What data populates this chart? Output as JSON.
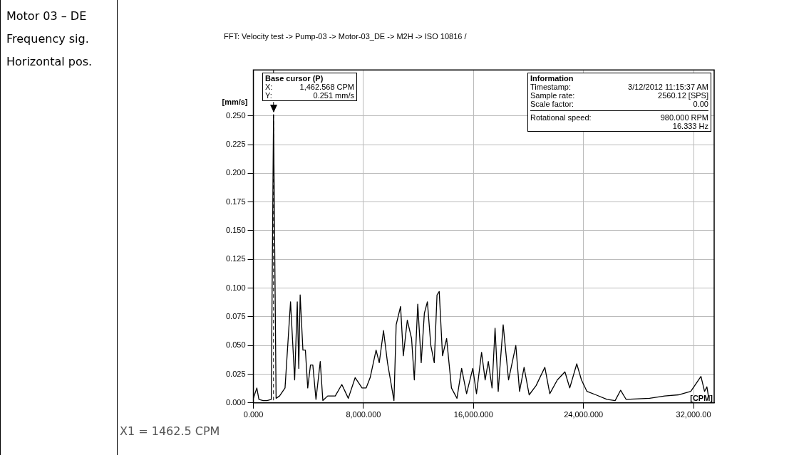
{
  "chart_data": {
    "type": "line",
    "title": "FFT: Velocity test -> Pump-03 -> Motor-03_DE -> M2H -> ISO 10816 /",
    "xlabel": "[CPM]",
    "ylabel": "[mm/s]",
    "x": [
      0,
      250,
      400,
      700,
      1000,
      1300,
      1462.568,
      1650,
      1900,
      2300,
      2700,
      3000,
      3190,
      3300,
      3400,
      3600,
      3780,
      3950,
      4150,
      4320,
      4550,
      4860,
      5050,
      5400,
      5950,
      6430,
      6900,
      7400,
      7900,
      8200,
      8490,
      8920,
      9150,
      9460,
      9750,
      10220,
      10380,
      10700,
      10900,
      11190,
      11500,
      11700,
      11950,
      12200,
      12430,
      12650,
      12900,
      13150,
      13350,
      13510,
      13750,
      14050,
      14400,
      14800,
      15140,
      15500,
      15950,
      16220,
      16590,
      16850,
      17080,
      17350,
      17570,
      17800,
      17950,
      18160,
      18550,
      19080,
      19350,
      19680,
      20050,
      20550,
      21190,
      21550,
      22100,
      22650,
      23000,
      23510,
      23850,
      24250,
      24900,
      25700,
      26300,
      26700,
      27100,
      28800,
      29900,
      30900,
      31800,
      32540,
      32800,
      32970,
      33080
    ],
    "values": [
      0.004,
      0.013,
      0.003,
      0.002,
      0.002,
      0.003,
      0.251,
      0.004,
      0.006,
      0.013,
      0.088,
      0.02,
      0.088,
      0.03,
      0.094,
      0.046,
      0.046,
      0.013,
      0.033,
      0.033,
      0.003,
      0.036,
      0.002,
      0.006,
      0.006,
      0.016,
      0.004,
      0.022,
      0.013,
      0.013,
      0.022,
      0.046,
      0.035,
      0.063,
      0.035,
      0.002,
      0.068,
      0.084,
      0.041,
      0.072,
      0.056,
      0.02,
      0.086,
      0.035,
      0.078,
      0.088,
      0.05,
      0.035,
      0.094,
      0.097,
      0.041,
      0.056,
      0.013,
      0.004,
      0.03,
      0.008,
      0.03,
      0.008,
      0.044,
      0.02,
      0.036,
      0.013,
      0.065,
      0.01,
      0.035,
      0.068,
      0.02,
      0.05,
      0.01,
      0.031,
      0.007,
      0.015,
      0.031,
      0.008,
      0.02,
      0.027,
      0.013,
      0.034,
      0.02,
      0.01,
      0.007,
      0.003,
      0.002,
      0.011,
      0.003,
      0.004,
      0.006,
      0.007,
      0.01,
      0.023,
      0.01,
      0.014,
      0.006
    ],
    "color": "#000000",
    "marker": "none",
    "line_style": "solid",
    "grid": true,
    "legend": false,
    "xlim": [
      0,
      33500
    ],
    "xticks": [
      {
        "value": 0,
        "label": "0.000"
      },
      {
        "value": 8000,
        "label": "8,000.000"
      },
      {
        "value": 16000,
        "label": "16,000.000"
      },
      {
        "value": 24000,
        "label": "24,000.000"
      },
      {
        "value": 32000,
        "label": "32,000.00"
      }
    ],
    "ylim": [
      0,
      0.29
    ],
    "yticks": [
      {
        "value": 0,
        "label": "0.000"
      },
      {
        "value": 0.025,
        "label": "0.025"
      },
      {
        "value": 0.05,
        "label": "0.050"
      },
      {
        "value": 0.075,
        "label": "0.075"
      },
      {
        "value": 0.1,
        "label": "0.100"
      },
      {
        "value": 0.125,
        "label": "0.125"
      },
      {
        "value": 0.15,
        "label": "0.150"
      },
      {
        "value": 0.175,
        "label": "0.175"
      },
      {
        "value": 0.2,
        "label": "0.200"
      },
      {
        "value": 0.225,
        "label": "0.225"
      },
      {
        "value": 0.25,
        "label": "0.250"
      }
    ],
    "ref_lines": [
      {
        "axis": "x",
        "value": 1462.568,
        "label": "Base cursor (P)",
        "line_style": "dashed",
        "color": "#000000"
      }
    ],
    "annotations": [
      "Motor 03 – DE",
      "Frequency sig.",
      "Horizontal pos.",
      "X:",
      "1,462.568 CPM",
      "Y:",
      "0.251 mm/s",
      "Information",
      "Timestamp:",
      "3/12/2012 11:15:37 AM",
      "Sample rate:",
      "2560.12 [SPS]",
      "Scale factor:",
      "0.00",
      "Rotational speed:",
      "980.000 RPM",
      "16.333 Hz",
      "X1 = 1462.5 CPM"
    ]
  }
}
